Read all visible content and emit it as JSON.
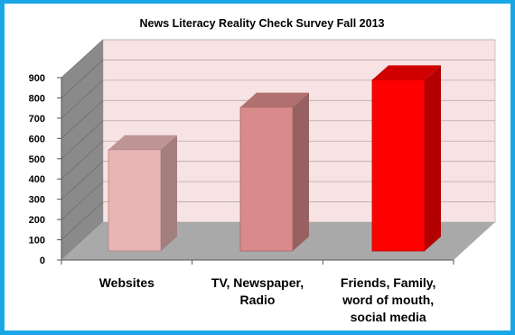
{
  "chart_data": {
    "type": "bar",
    "title": "News Literacy Reality Check Survey Fall 2013",
    "categories": [
      [
        "Websites"
      ],
      [
        "TV, Newspaper,",
        "Radio"
      ],
      [
        "Friends, Family,",
        "word of mouth,",
        "social media"
      ]
    ],
    "values": [
      500,
      710,
      845
    ],
    "ylim": [
      0,
      900
    ],
    "yticks": [
      0,
      100,
      200,
      300,
      400,
      500,
      600,
      700,
      800,
      900
    ],
    "grid": true,
    "bar_colors": [
      "#e8b4b4",
      "#d98a8a",
      "#ff0000"
    ],
    "wall_color": "#f7e3e3",
    "floor_color": "#a9a9a9",
    "side_wall_color": "#8a8a8a",
    "frame_color": "#1aa7e8"
  }
}
